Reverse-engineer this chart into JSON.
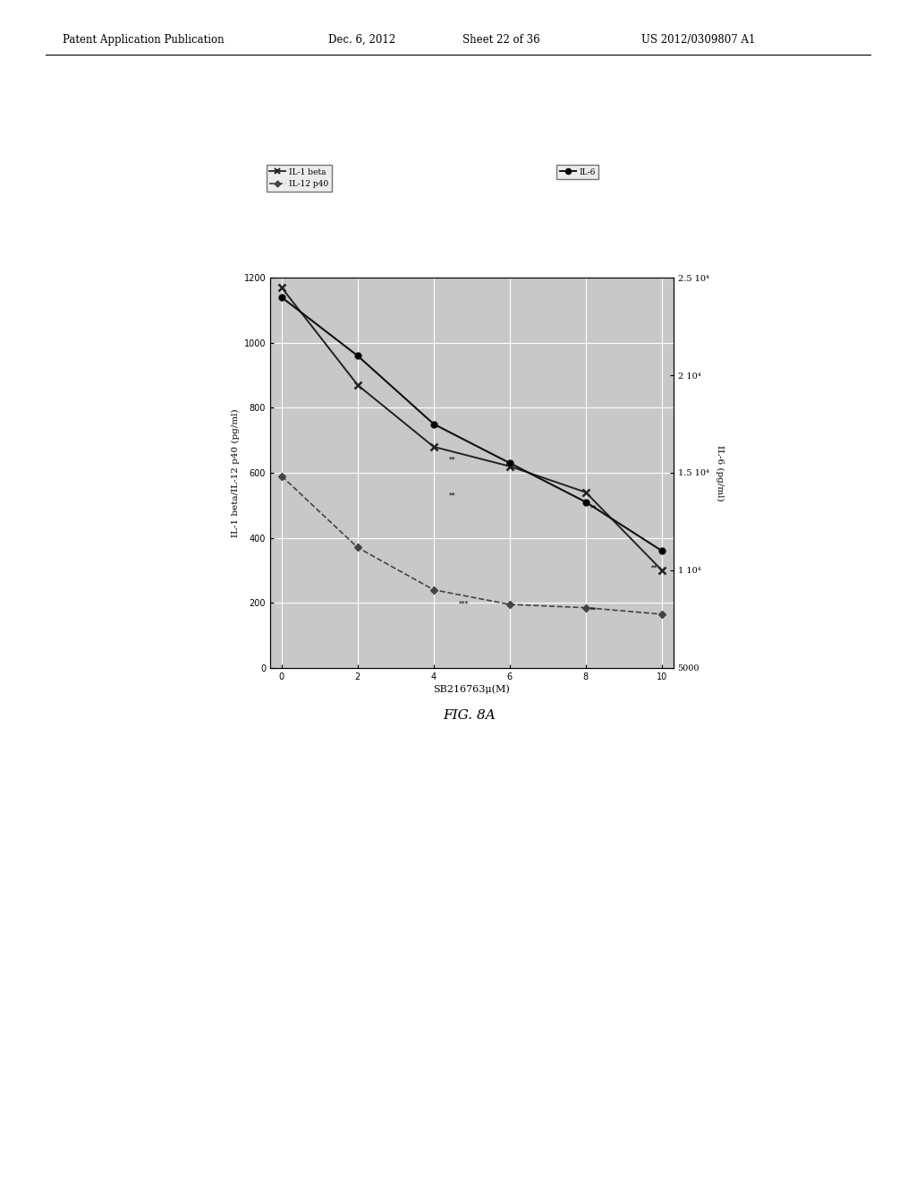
{
  "title": "",
  "xlabel": "SB216763μ(M)",
  "ylabel_left": "IL-1 beta/IL-12 p40 (pg/ml)",
  "ylabel_right": "IL-6 (pg/ml)",
  "x": [
    0,
    2,
    4,
    6,
    8,
    10
  ],
  "il1beta": [
    1170,
    870,
    680,
    620,
    540,
    300
  ],
  "il12p40": [
    590,
    370,
    240,
    195,
    185,
    165
  ],
  "il6": [
    24000,
    21000,
    17500,
    15500,
    13500,
    11000
  ],
  "ylim_left": [
    0,
    1200
  ],
  "ylim_right": [
    5000,
    25000
  ],
  "xlim": [
    -0.3,
    10.3
  ],
  "yticks_left": [
    0,
    200,
    400,
    600,
    800,
    1000,
    1200
  ],
  "yticks_right": [
    5000,
    10000,
    15000,
    20000,
    25000
  ],
  "ytick_labels_right": [
    "5000",
    "1 10⁴",
    "1.5 10⁴",
    "2 10⁴",
    "2.5 10⁴"
  ],
  "xticks": [
    0,
    2,
    4,
    6,
    8,
    10
  ],
  "legend1_labels": [
    "-×- IL-1 beta",
    "-◆- IL-12 p40"
  ],
  "legend2_label": "-●- IL-6",
  "plot_bg_color": "#c8c8c8",
  "grid_color": "#ffffff",
  "line_color_il1beta": "#222222",
  "line_color_il12p40": "#444444",
  "line_color_il6": "#111111",
  "header_left": "Patent Application Publication",
  "header_date": "Dec. 6, 2012",
  "header_sheet": "Sheet 22 of 36",
  "header_patent": "US 2012/0309807 A1",
  "figure_label": "FIG. 8A",
  "fig_label_italic": true
}
